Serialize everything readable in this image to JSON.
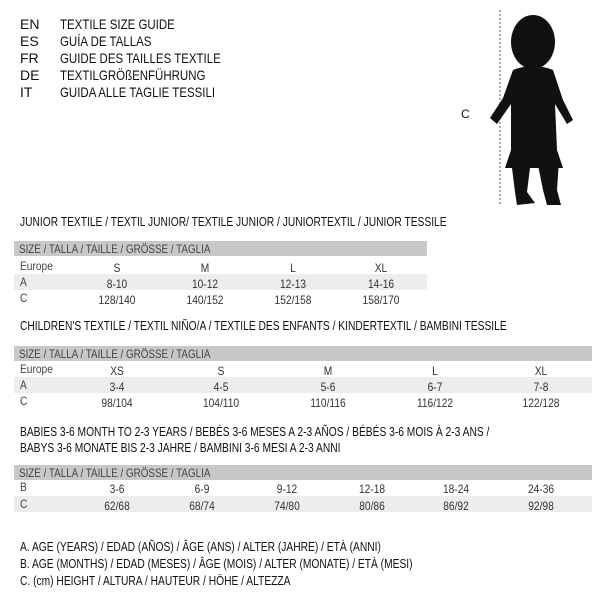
{
  "languages": [
    {
      "code": "EN",
      "title": "TEXTILE SIZE GUIDE"
    },
    {
      "code": "ES",
      "title": "GUÍA DE TALLAS"
    },
    {
      "code": "FR",
      "title": "GUIDE DES TAILLES TEXTILE"
    },
    {
      "code": "DE",
      "title": "TEXTILGRÖßENFÜHRUNG"
    },
    {
      "code": "IT",
      "title": "GUIDA ALLE TAGLIE TESSILI"
    }
  ],
  "figure": {
    "label": "C"
  },
  "size_header": "SIZE / TALLA / TAILLE / GRÖSSE / TAGLIA",
  "junior": {
    "title": "JUNIOR TEXTILE / TEXTIL JUNIOR/ TEXTILE JUNIOR / JUNIORTEXTIL / JUNIOR TESSILE",
    "rows": [
      {
        "label": "Europe",
        "values": [
          "S",
          "M",
          "L",
          "XL"
        ]
      },
      {
        "label": "A",
        "values": [
          "8-10",
          "10-12",
          "12-13",
          "14-16"
        ]
      },
      {
        "label": "C",
        "values": [
          "128/140",
          "140/152",
          "152/158",
          "158/170"
        ]
      }
    ]
  },
  "children": {
    "title": "CHILDREN'S TEXTILE / TEXTIL NIÑO/A / TEXTILE DES ENFANTS / KINDERTEXTIL / BAMBINI TESSILE",
    "rows": [
      {
        "label": "Europe",
        "values": [
          "XS",
          "S",
          "M",
          "L",
          "XL"
        ]
      },
      {
        "label": "A",
        "values": [
          "3-4",
          "4-5",
          "5-6",
          "6-7",
          "7-8"
        ]
      },
      {
        "label": "C",
        "values": [
          "98/104",
          "104/110",
          "110/116",
          "116/122",
          "122/128"
        ]
      }
    ]
  },
  "babies": {
    "title_line1": "BABIES 3-6 MONTH TO 2-3 YEARS / BEBÉS 3-6 MESES A 2-3 AÑOS / BÉBÉS 3-6 MOIS À 2-3 ANS /",
    "title_line2": "BABYS 3-6 MONATE BIS 2-3 JAHRE / BAMBINI 3-6 MESI A 2-3 ANNI",
    "rows": [
      {
        "label": "B",
        "values": [
          "3-6",
          "6-9",
          "9-12",
          "12-18",
          "18-24",
          "24-36"
        ]
      },
      {
        "label": "C",
        "values": [
          "62/68",
          "68/74",
          "74/80",
          "80/86",
          "86/92",
          "92/98"
        ]
      }
    ]
  },
  "legend": [
    "A. AGE (YEARS) / EDAD (AÑOS) / ÂGE (ANS) / ALTER (JAHRE) / ETÀ (ANNI)",
    "B. AGE (MONTHS) / EDAD (MESES) / ÂGE (MOIS) / ALTER (MONATE) / ETÀ (MESI)",
    "C. (cm) HEIGHT / ALTURA / HAUTEUR / HÖHE / ALTEZZA"
  ]
}
